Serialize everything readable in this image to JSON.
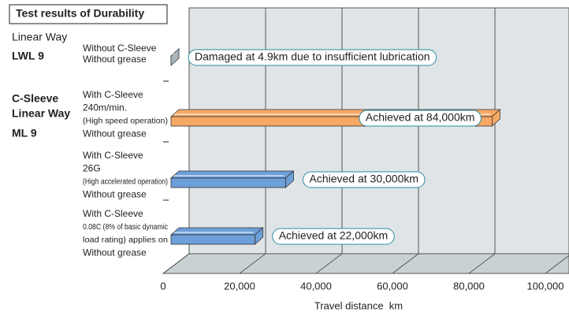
{
  "chart_data": {
    "type": "bar3d",
    "title": "Test results of Durability",
    "groups": [
      [
        "Linear Way",
        "LWL 9"
      ],
      [
        "C-Sleeve",
        "Linear Way",
        "ML 9"
      ]
    ],
    "categories": [
      [
        "Without C-Sleeve",
        "Without grease"
      ],
      [
        "With C-Sleeve",
        "240m/min.",
        "(High speed operation)",
        "Without grease"
      ],
      [
        "With C-Sleeve",
        "26G",
        "(High accelerated operation)",
        "Without grease"
      ],
      [
        "With C-Sleeve",
        "0.08C (8% of basic dynamic",
        "load rating) applies on",
        "Without grease"
      ]
    ],
    "values": [
      4.9,
      84000,
      30000,
      22000
    ],
    "colors": [
      "#a9b6be",
      "#f6a865",
      "#6d9fd9",
      "#6d9fd9"
    ],
    "annotations": [
      "Damaged at 4.9km due to insufficient lubrication",
      "Achieved at 84,000km",
      "Achieved at 30,000km",
      "Achieved at 22,000km"
    ],
    "xlabel": "Travel distance  km",
    "xlim": [
      0,
      100000
    ],
    "xticks": [
      0,
      {
        "value": 20000,
        "label": "20,000"
      },
      {
        "value": 40000,
        "label": "40,000"
      },
      {
        "value": 60000,
        "label": "60,000"
      },
      {
        "value": 80000,
        "label": "80,000"
      },
      {
        "value": 100000,
        "label": "100,000"
      }
    ],
    "grid": true
  }
}
